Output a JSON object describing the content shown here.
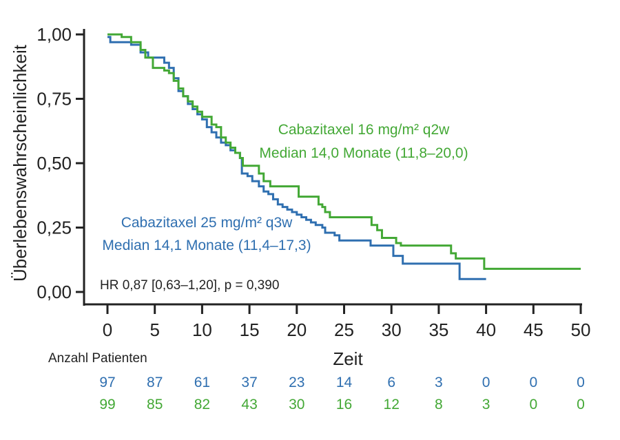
{
  "chart_data": {
    "type": "line",
    "subtype": "kaplan-meier",
    "xlabel": "Zeit",
    "ylabel": "Überlebenswahrscheinlichkeit",
    "xlim": [
      0,
      50
    ],
    "ylim": [
      0,
      1
    ],
    "x_ticks": [
      "0",
      "5",
      "10",
      "15",
      "20",
      "25",
      "30",
      "35",
      "40",
      "45",
      "50"
    ],
    "y_ticks": [
      "1,00",
      "0,75",
      "0,50",
      "0,25",
      "0,00"
    ],
    "y_tick_values": [
      1.0,
      0.75,
      0.5,
      0.25,
      0.0
    ],
    "hr_text": "HR 0,87 [0,63–1,20], p = 0,390",
    "series": [
      {
        "name": "Cabazitaxel 25 mg/m² q3w",
        "median_label": "Median 14,1 Monate (11,4–17,3)",
        "color": "#2f6fb0",
        "points": [
          [
            0,
            0.99
          ],
          [
            0.3,
            0.97
          ],
          [
            2,
            0.97
          ],
          [
            2.5,
            0.96
          ],
          [
            3.5,
            0.93
          ],
          [
            4.3,
            0.91
          ],
          [
            5.5,
            0.91
          ],
          [
            6,
            0.89
          ],
          [
            6.5,
            0.87
          ],
          [
            7,
            0.83
          ],
          [
            7.5,
            0.78
          ],
          [
            8,
            0.76
          ],
          [
            8.5,
            0.73
          ],
          [
            9,
            0.71
          ],
          [
            9.5,
            0.69
          ],
          [
            10,
            0.67
          ],
          [
            10.5,
            0.64
          ],
          [
            11,
            0.62
          ],
          [
            11.5,
            0.6
          ],
          [
            12,
            0.58
          ],
          [
            12.5,
            0.57
          ],
          [
            13,
            0.55
          ],
          [
            13.5,
            0.54
          ],
          [
            14,
            0.52
          ],
          [
            14.2,
            0.46
          ],
          [
            14.8,
            0.45
          ],
          [
            15.3,
            0.43
          ],
          [
            16,
            0.41
          ],
          [
            16.5,
            0.39
          ],
          [
            17,
            0.38
          ],
          [
            17.5,
            0.36
          ],
          [
            18,
            0.34
          ],
          [
            18.5,
            0.33
          ],
          [
            19,
            0.32
          ],
          [
            19.5,
            0.31
          ],
          [
            20,
            0.3
          ],
          [
            20.5,
            0.29
          ],
          [
            21,
            0.28
          ],
          [
            21.5,
            0.27
          ],
          [
            22,
            0.26
          ],
          [
            22.7,
            0.25
          ],
          [
            23,
            0.23
          ],
          [
            24,
            0.22
          ],
          [
            24.5,
            0.2
          ],
          [
            27,
            0.2
          ],
          [
            27.8,
            0.18
          ],
          [
            30,
            0.18
          ],
          [
            30.2,
            0.14
          ],
          [
            31,
            0.14
          ],
          [
            31.2,
            0.11
          ],
          [
            36.5,
            0.11
          ],
          [
            37.2,
            0.05
          ],
          [
            40,
            0.05
          ]
        ]
      },
      {
        "name": "Cabazitaxel 16 mg/m² q2w",
        "median_label": "Median 14,0 Monate (11,8–20,0)",
        "color": "#43a835",
        "points": [
          [
            0,
            1.0
          ],
          [
            1.5,
            0.99
          ],
          [
            2.5,
            0.97
          ],
          [
            3.2,
            0.97
          ],
          [
            3.5,
            0.94
          ],
          [
            4,
            0.91
          ],
          [
            4.5,
            0.91
          ],
          [
            4.8,
            0.87
          ],
          [
            6,
            0.86
          ],
          [
            6.5,
            0.85
          ],
          [
            7,
            0.82
          ],
          [
            7.5,
            0.79
          ],
          [
            8,
            0.76
          ],
          [
            8.5,
            0.74
          ],
          [
            9,
            0.72
          ],
          [
            9.5,
            0.7
          ],
          [
            10,
            0.68
          ],
          [
            11,
            0.65
          ],
          [
            11.5,
            0.64
          ],
          [
            12,
            0.6
          ],
          [
            12.5,
            0.58
          ],
          [
            13,
            0.56
          ],
          [
            13.5,
            0.54
          ],
          [
            14,
            0.52
          ],
          [
            14.3,
            0.49
          ],
          [
            15.5,
            0.49
          ],
          [
            16,
            0.46
          ],
          [
            16.5,
            0.43
          ],
          [
            17.2,
            0.41
          ],
          [
            20,
            0.41
          ],
          [
            20.2,
            0.37
          ],
          [
            22,
            0.37
          ],
          [
            22.3,
            0.34
          ],
          [
            22.7,
            0.33
          ],
          [
            23,
            0.31
          ],
          [
            23.5,
            0.29
          ],
          [
            27.5,
            0.29
          ],
          [
            27.9,
            0.26
          ],
          [
            28.5,
            0.24
          ],
          [
            29,
            0.21
          ],
          [
            30,
            0.21
          ],
          [
            30.5,
            0.19
          ],
          [
            31,
            0.18
          ],
          [
            36,
            0.18
          ],
          [
            36.3,
            0.15
          ],
          [
            36.8,
            0.13
          ],
          [
            39.5,
            0.13
          ],
          [
            39.8,
            0.09
          ],
          [
            50,
            0.09
          ]
        ]
      }
    ],
    "risk_table": {
      "title": "Anzahl Patienten",
      "rows": [
        {
          "series": "Cabazitaxel 25 mg/m² q3w",
          "color": "#2f6fb0",
          "values": [
            "97",
            "87",
            "61",
            "37",
            "23",
            "14",
            "6",
            "3",
            "0",
            "0",
            "0"
          ]
        },
        {
          "series": "Cabazitaxel 16 mg/m² q2w",
          "color": "#43a835",
          "values": [
            "99",
            "85",
            "82",
            "43",
            "30",
            "16",
            "12",
            "8",
            "3",
            "0",
            "0"
          ]
        }
      ]
    }
  }
}
